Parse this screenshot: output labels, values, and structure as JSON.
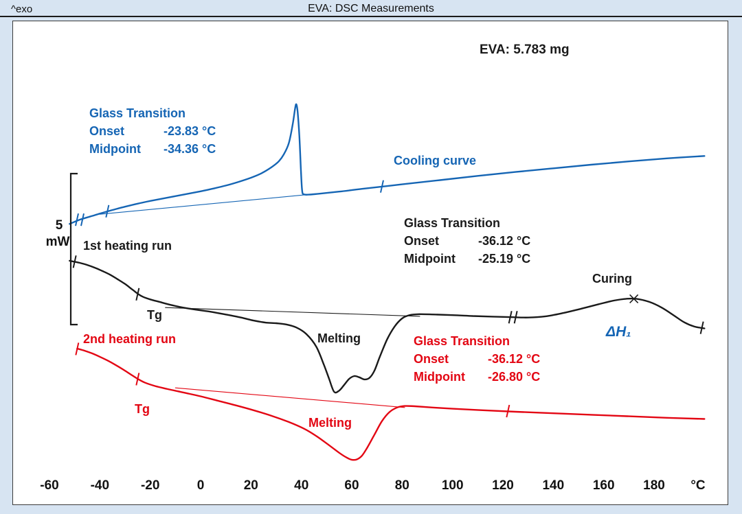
{
  "colors": {
    "blue": "#1565b4",
    "red": "#e30613",
    "black": "#1a1a1a",
    "plot_background": "#ffffff",
    "page_background": "#d7e4f2"
  },
  "chart_data": {
    "type": "line",
    "title": "EVA: DSC Measurements",
    "exo_label": "^exo",
    "sample_label": "EVA: 5.783 mg",
    "x_axis": {
      "unit": "°C",
      "xlim": [
        -60,
        202
      ],
      "tick_values": [
        -60,
        -40,
        -20,
        0,
        20,
        40,
        60,
        80,
        100,
        120,
        140,
        160,
        180
      ],
      "tick_labels": [
        "-60",
        "-40",
        "-20",
        "0",
        "20",
        "40",
        "60",
        "80",
        "100",
        "120",
        "140",
        "160",
        "180"
      ]
    },
    "y_axis": {
      "scale_bar_value": "5",
      "scale_bar_unit": "mW"
    },
    "series": [
      {
        "id": "cooling-curve",
        "name": "Cooling curve",
        "color_key": "blue",
        "width": 2.4,
        "smooth": true,
        "points": [
          [
            -52,
            3.38
          ],
          [
            -48,
            3.52
          ],
          [
            -44,
            3.62
          ],
          [
            -40,
            3.72
          ],
          [
            -35,
            3.84
          ],
          [
            -30,
            3.95
          ],
          [
            -25,
            4.05
          ],
          [
            -20,
            4.14
          ],
          [
            -15,
            4.22
          ],
          [
            -10,
            4.3
          ],
          [
            -5,
            4.38
          ],
          [
            0,
            4.46
          ],
          [
            5,
            4.55
          ],
          [
            10,
            4.65
          ],
          [
            15,
            4.77
          ],
          [
            20,
            4.91
          ],
          [
            24,
            5.05
          ],
          [
            28,
            5.25
          ],
          [
            31,
            5.45
          ],
          [
            33,
            5.68
          ],
          [
            35,
            6.05
          ],
          [
            36.5,
            6.65
          ],
          [
            37.5,
            7.2
          ],
          [
            38,
            7.34
          ],
          [
            38.5,
            7.1
          ],
          [
            39.2,
            6.3
          ],
          [
            39.8,
            5.2
          ],
          [
            40.3,
            4.48
          ],
          [
            41,
            4.36
          ],
          [
            43,
            4.35
          ],
          [
            47,
            4.38
          ],
          [
            55,
            4.45
          ],
          [
            65,
            4.55
          ],
          [
            80,
            4.69
          ],
          [
            95,
            4.83
          ],
          [
            110,
            4.97
          ],
          [
            125,
            5.1
          ],
          [
            140,
            5.22
          ],
          [
            155,
            5.34
          ],
          [
            170,
            5.45
          ],
          [
            185,
            5.55
          ],
          [
            200,
            5.63
          ]
        ]
      },
      {
        "id": "first-heating-run",
        "name": "1st heating run",
        "color_key": "black",
        "width": 2.4,
        "smooth": true,
        "points": [
          [
            -52,
            2.16
          ],
          [
            -48,
            2.09
          ],
          [
            -45,
            2.02
          ],
          [
            -42,
            1.93
          ],
          [
            -39,
            1.82
          ],
          [
            -36,
            1.7
          ],
          [
            -33,
            1.55
          ],
          [
            -30,
            1.39
          ],
          [
            -27,
            1.2
          ],
          [
            -25,
            1.07
          ],
          [
            -23,
            0.97
          ],
          [
            -20,
            0.88
          ],
          [
            -16,
            0.79
          ],
          [
            -12,
            0.7
          ],
          [
            -7,
            0.61
          ],
          [
            -2,
            0.54
          ],
          [
            4,
            0.47
          ],
          [
            10,
            0.38
          ],
          [
            16,
            0.28
          ],
          [
            21,
            0.18
          ],
          [
            26,
            0.11
          ],
          [
            30,
            0.09
          ],
          [
            34,
            0.05
          ],
          [
            38,
            -0.05
          ],
          [
            42,
            -0.27
          ],
          [
            46,
            -0.7
          ],
          [
            49,
            -1.3
          ],
          [
            51,
            -1.75
          ],
          [
            53,
            -2.18
          ],
          [
            55,
            -2.14
          ],
          [
            57,
            -1.95
          ],
          [
            59,
            -1.75
          ],
          [
            61,
            -1.66
          ],
          [
            63,
            -1.7
          ],
          [
            65,
            -1.77
          ],
          [
            67,
            -1.72
          ],
          [
            69,
            -1.48
          ],
          [
            71,
            -1.05
          ],
          [
            74,
            -0.45
          ],
          [
            77,
            -0.02
          ],
          [
            80,
            0.25
          ],
          [
            83,
            0.36
          ],
          [
            87,
            0.39
          ],
          [
            93,
            0.38
          ],
          [
            100,
            0.36
          ],
          [
            108,
            0.33
          ],
          [
            116,
            0.31
          ],
          [
            124,
            0.29
          ],
          [
            130,
            0.28
          ],
          [
            137,
            0.32
          ],
          [
            144,
            0.43
          ],
          [
            151,
            0.57
          ],
          [
            158,
            0.72
          ],
          [
            164,
            0.84
          ],
          [
            169,
            0.9
          ],
          [
            173,
            0.9
          ],
          [
            178,
            0.8
          ],
          [
            183,
            0.61
          ],
          [
            188,
            0.34
          ],
          [
            192,
            0.12
          ],
          [
            196,
            -0.02
          ],
          [
            200,
            -0.08
          ]
        ]
      },
      {
        "id": "second-heating-run",
        "name": "2nd heating run",
        "color_key": "red",
        "width": 2.4,
        "smooth": true,
        "points": [
          [
            -49,
            -0.75
          ],
          [
            -46,
            -0.82
          ],
          [
            -43,
            -0.91
          ],
          [
            -40,
            -1.02
          ],
          [
            -37,
            -1.14
          ],
          [
            -34,
            -1.28
          ],
          [
            -31,
            -1.43
          ],
          [
            -28,
            -1.59
          ],
          [
            -25,
            -1.75
          ],
          [
            -22,
            -1.88
          ],
          [
            -18,
            -1.99
          ],
          [
            -13,
            -2.09
          ],
          [
            -7,
            -2.2
          ],
          [
            0,
            -2.33
          ],
          [
            7,
            -2.48
          ],
          [
            14,
            -2.63
          ],
          [
            21,
            -2.79
          ],
          [
            28,
            -2.97
          ],
          [
            35,
            -3.18
          ],
          [
            41,
            -3.4
          ],
          [
            46,
            -3.65
          ],
          [
            51,
            -3.95
          ],
          [
            55,
            -4.2
          ],
          [
            58,
            -4.36
          ],
          [
            60,
            -4.43
          ],
          [
            62,
            -4.42
          ],
          [
            64,
            -4.3
          ],
          [
            66,
            -4.05
          ],
          [
            69,
            -3.6
          ],
          [
            72,
            -3.15
          ],
          [
            75,
            -2.85
          ],
          [
            78,
            -2.7
          ],
          [
            81,
            -2.65
          ],
          [
            85,
            -2.66
          ],
          [
            92,
            -2.7
          ],
          [
            100,
            -2.74
          ],
          [
            112,
            -2.79
          ],
          [
            125,
            -2.84
          ],
          [
            140,
            -2.89
          ],
          [
            155,
            -2.94
          ],
          [
            170,
            -2.99
          ],
          [
            185,
            -3.04
          ],
          [
            200,
            -3.08
          ]
        ]
      },
      {
        "id": "cooling-baseline",
        "name": "cooling evaluation baseline",
        "color_key": "blue",
        "width": 1.1,
        "smooth": false,
        "points": [
          [
            -40,
            3.7
          ],
          [
            45,
            4.37
          ]
        ]
      },
      {
        "id": "first-heating-baseline",
        "name": "1st heating evaluation baseline",
        "color_key": "black",
        "width": 1.1,
        "smooth": false,
        "points": [
          [
            -14,
            0.61
          ],
          [
            87,
            0.32
          ]
        ]
      },
      {
        "id": "second-heating-baseline",
        "name": "2nd heating evaluation baseline",
        "color_key": "red",
        "width": 1.1,
        "smooth": false,
        "points": [
          [
            -10,
            -2.05
          ],
          [
            81,
            -2.7
          ]
        ]
      }
    ],
    "markers": [
      {
        "series_color": "blue",
        "type": "tick2",
        "x": -48,
        "y": 3.52
      },
      {
        "series_color": "blue",
        "type": "tick",
        "x": -37,
        "y": 3.8
      },
      {
        "series_color": "blue",
        "type": "tick",
        "x": 72,
        "y": 4.62
      },
      {
        "series_color": "black",
        "type": "tick",
        "x": -50,
        "y": 2.13
      },
      {
        "series_color": "black",
        "type": "tick",
        "x": -25,
        "y": 1.05
      },
      {
        "series_color": "black",
        "type": "tick2",
        "x": 124,
        "y": 0.29
      },
      {
        "series_color": "black",
        "type": "tick",
        "x": 199,
        "y": -0.06
      },
      {
        "series_color": "red",
        "type": "tick",
        "x": -49,
        "y": -0.76
      },
      {
        "series_color": "red",
        "type": "tick",
        "x": -25,
        "y": -1.76
      },
      {
        "series_color": "red",
        "type": "tick",
        "x": 122,
        "y": -2.82
      },
      {
        "series_color": "black",
        "type": "x",
        "x": 172,
        "y": 0.9
      }
    ],
    "annotations": {
      "gt_cooling": {
        "title": "Glass Transition",
        "onset_label": "Onset",
        "onset_value": "-23.83 °C",
        "midpoint_label": "Midpoint",
        "midpoint_value": "-34.36 °C"
      },
      "gt_first": {
        "title": "Glass Transition",
        "onset_label": "Onset",
        "onset_value": "-36.12 °C",
        "midpoint_label": "Midpoint",
        "midpoint_value": "-25.19 °C"
      },
      "gt_second": {
        "title": "Glass Transition",
        "onset_label": "Onset",
        "onset_value": "-36.12 °C",
        "midpoint_label": "Midpoint",
        "midpoint_value": "-26.80 °C"
      },
      "cooling_curve": "Cooling curve",
      "first_run": "1st heating run",
      "second_run": "2nd heating run",
      "tg_first": "Tg",
      "tg_second": "Tg",
      "melting_first": "Melting",
      "melting_second": "Melting",
      "curing": "Curing",
      "delta_h1": "ΔH₁"
    }
  }
}
